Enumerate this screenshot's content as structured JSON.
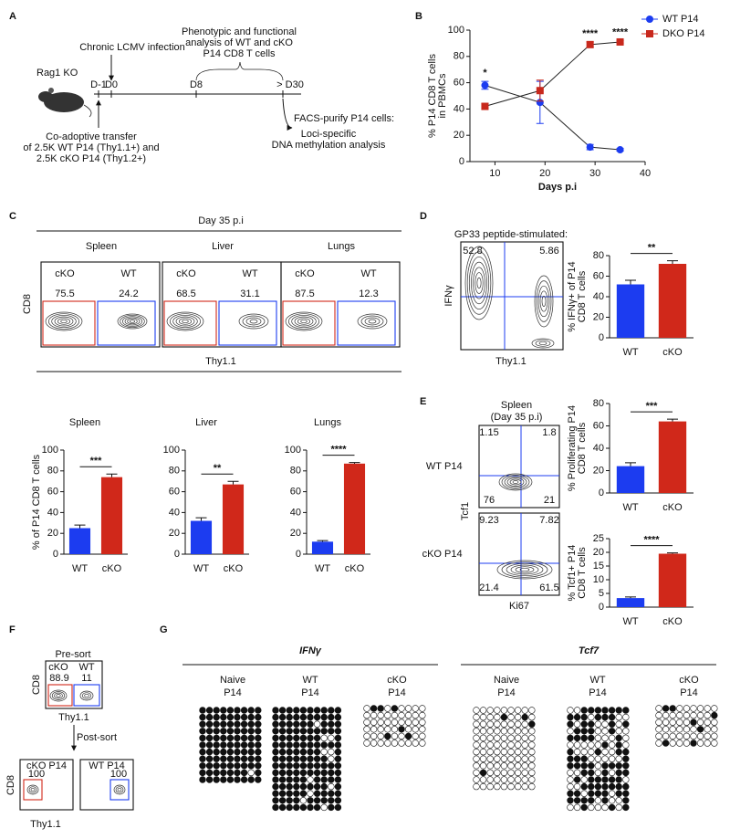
{
  "panel_labels": [
    "A",
    "B",
    "C",
    "D",
    "E",
    "F",
    "G"
  ],
  "panel_a": {
    "host": "Rag1 KO",
    "infection": "Chronic LCMV infection",
    "analysis": [
      "Phenotypic and functional",
      "analysis of WT and cKO",
      "P14 CD8 T cells"
    ],
    "days": [
      "D-1",
      "D0",
      "D8",
      "> D30"
    ],
    "transfer": [
      "Co-adoptive transfer",
      "of 2.5K WT P14 (Thy1.1+) and",
      "2.5K cKO P14 (Thy1.2+)"
    ],
    "facs": "FACS-purify P14 cells:",
    "methylation": [
      "Loci-specific",
      "DNA methylation analysis"
    ]
  },
  "panel_c_flow": {
    "title": "Day 35 p.i",
    "tissues": [
      "Spleen",
      "Liver",
      "Lungs"
    ],
    "gates": [
      "cKO",
      "WT"
    ],
    "percentages": [
      [
        "75.5",
        "24.2"
      ],
      [
        "68.5",
        "31.1"
      ],
      [
        "87.5",
        "12.3"
      ]
    ],
    "y_label": "CD8",
    "x_label": "Thy1.1"
  },
  "panel_d_flow": {
    "title": "GP33 peptide-stimulated:",
    "quadrants": [
      "52.8",
      "5.86"
    ],
    "y_label": "IFNγ",
    "x_label": "Thy1.1"
  },
  "panel_e_flow": {
    "title": [
      "Spleen",
      "(Day 35 p.i)"
    ],
    "rows": [
      {
        "group": "WT",
        "suffix": "P14",
        "quadrants": [
          "1.15",
          "1.8",
          "76",
          "21"
        ]
      },
      {
        "group": "cKO",
        "suffix": "P14",
        "quadrants": [
          "9.23",
          "7.82",
          "21.4",
          "61.5"
        ]
      }
    ],
    "y_label": "Tcf1",
    "x_label": "Ki67"
  },
  "panel_f": {
    "pre": "Pre-sort",
    "gates": [
      "cKO",
      "WT"
    ],
    "percentages": [
      "88.9",
      "11"
    ],
    "post": "Post-sort",
    "post_gates": [
      "cKO P14",
      "WT P14"
    ],
    "post_percentages": [
      "100",
      "100"
    ],
    "y_label": "CD8",
    "x_label": "Thy1.1"
  },
  "panel_g": {
    "loci": [
      "IFNγ",
      "Tcf7"
    ],
    "groups": [
      [
        "Naive",
        "P14"
      ],
      [
        "WT",
        "P14"
      ],
      [
        "cKO",
        "P14"
      ]
    ]
  },
  "chart_data": [
    {
      "type": "line",
      "x": [
        8,
        19,
        29,
        35
      ],
      "xlim": [
        5,
        40
      ],
      "xticks": [
        10,
        20,
        30,
        40
      ],
      "ylim": [
        0,
        100
      ],
      "yticks": [
        0,
        20,
        40,
        60,
        80,
        100
      ],
      "x_label": "Days p.i",
      "y_label": [
        "% P14 CD8 T cells",
        "in PBMCs"
      ],
      "legend": "top-right",
      "significance": [
        "*",
        null,
        "****",
        "****"
      ],
      "series": [
        {
          "name": "WT P14",
          "color": "#1c3cf0",
          "marker": "circle",
          "values": [
            58,
            45,
            11,
            9
          ],
          "errors": [
            3,
            16,
            2,
            1
          ]
        },
        {
          "name": "DKO P14",
          "color": "#c8281c",
          "marker": "square",
          "values": [
            42,
            54,
            89,
            91
          ],
          "errors": [
            2,
            8,
            2,
            1
          ]
        }
      ]
    },
    {
      "type": "bar",
      "title": "Spleen",
      "categories": [
        "WT",
        "cKO"
      ],
      "values": [
        25,
        74
      ],
      "errors": [
        3,
        3
      ],
      "colors": [
        "#1c3cf0",
        "#d0281a"
      ],
      "ylim": [
        0,
        100
      ],
      "yticks": [
        0,
        20,
        40,
        60,
        80,
        100
      ],
      "y_label": [
        "% of P14 CD8 T cells"
      ],
      "significance": "***"
    },
    {
      "type": "bar",
      "title": "Liver",
      "categories": [
        "WT",
        "cKO"
      ],
      "values": [
        32,
        67
      ],
      "errors": [
        3,
        3
      ],
      "colors": [
        "#1c3cf0",
        "#d0281a"
      ],
      "ylim": [
        0,
        100
      ],
      "yticks": [
        0,
        20,
        40,
        60,
        80,
        100
      ],
      "y_label": [],
      "significance": "**"
    },
    {
      "type": "bar",
      "title": "Lungs",
      "categories": [
        "WT",
        "cKO"
      ],
      "values": [
        12,
        87
      ],
      "errors": [
        1,
        1
      ],
      "colors": [
        "#1c3cf0",
        "#d0281a"
      ],
      "ylim": [
        0,
        100
      ],
      "yticks": [
        0,
        20,
        40,
        60,
        80,
        100
      ],
      "y_label": [],
      "significance": "****"
    },
    {
      "type": "bar",
      "categories": [
        "WT",
        "cKO"
      ],
      "values": [
        52,
        72
      ],
      "errors": [
        4,
        3
      ],
      "colors": [
        "#1c3cf0",
        "#d0281a"
      ],
      "ylim": [
        0,
        80
      ],
      "yticks": [
        0,
        20,
        40,
        60,
        80
      ],
      "y_label": [
        "% IFNγ+ of P14",
        "CD8 T cells"
      ],
      "significance": "**"
    },
    {
      "type": "bar",
      "categories": [
        "WT",
        "cKO"
      ],
      "values": [
        24,
        64
      ],
      "errors": [
        3,
        2
      ],
      "colors": [
        "#1c3cf0",
        "#d0281a"
      ],
      "ylim": [
        0,
        80
      ],
      "yticks": [
        0,
        20,
        40,
        60,
        80
      ],
      "y_label": [
        "% Proliferating P14",
        "CD8 T cells"
      ],
      "significance": "***"
    },
    {
      "type": "bar",
      "categories": [
        "WT",
        "cKO"
      ],
      "values": [
        3.3,
        19.5
      ],
      "errors": [
        0.4,
        0.3
      ],
      "colors": [
        "#1c3cf0",
        "#d0281a"
      ],
      "ylim": [
        0,
        25
      ],
      "yticks": [
        0,
        5,
        10,
        15,
        20,
        25
      ],
      "y_label": [
        "% Tcf1+ P14",
        "CD8 T cells"
      ],
      "significance": "****"
    }
  ]
}
